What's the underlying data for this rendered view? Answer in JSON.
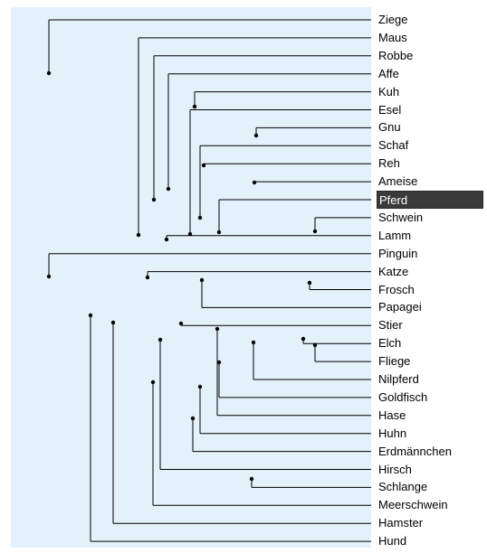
{
  "labels": [
    "Ziege",
    "Maus",
    "Robbe",
    "Affe",
    "Kuh",
    "Esel",
    "Gnu",
    "Schaf",
    "Reh",
    "Ameise",
    "Pferd",
    "Schwein",
    "Lamm",
    "Pinguin",
    "Katze",
    "Frosch",
    "Papagei",
    "Stier",
    "Elch",
    "Fliege",
    "Nilpferd",
    "Goldfisch",
    "Hase",
    "Huhn",
    "Erdmännchen",
    "Hirsch",
    "Schlange",
    "Meerschwein",
    "Hamster",
    "Hund"
  ],
  "selected_label": "Pferd",
  "colors": {
    "background": "#e3f1fb",
    "line": "#000000",
    "selection": "#3a3a3a"
  }
}
